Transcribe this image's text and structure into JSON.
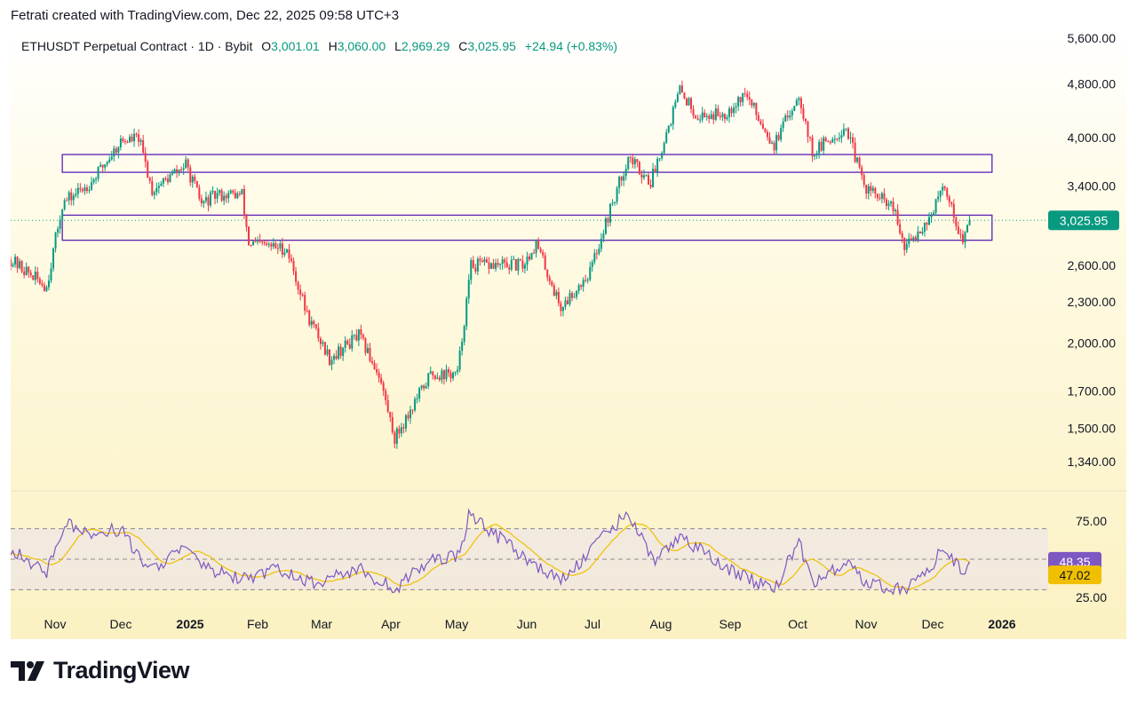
{
  "header": {
    "attribution": "Fetrati created with TradingView.com, Dec 22, 2025 09:58 UTC+3"
  },
  "legend": {
    "symbol": "ETHUSDT Perpetual Contract · 1D · Bybit",
    "o_label": "O",
    "o_value": "3,001.01",
    "h_label": "H",
    "h_value": "3,060.00",
    "l_label": "L",
    "l_value": "2,969.29",
    "c_label": "C",
    "c_value": "3,025.95",
    "change": "+24.94 (+0.83%)"
  },
  "brand": {
    "name": "TradingView"
  },
  "colors": {
    "up": "#089981",
    "down": "#f23645",
    "box": "#5b21b6",
    "rsi": "#7e57c2",
    "rsi_ma": "#f0c000",
    "price_badge": "#089981"
  },
  "chart_data": {
    "type": "candlestick",
    "price_axis": {
      "scale": "log",
      "ticks": [
        5600,
        4800,
        4000,
        3400,
        2600,
        2300,
        2000,
        1700,
        1500,
        1340
      ],
      "tick_labels": [
        "5,600.00",
        "4,800.00",
        "4,000.00",
        "3,400.00",
        "2,600.00",
        "2,300.00",
        "2,000.00",
        "1,700.00",
        "1,500.00",
        "1,340.00"
      ]
    },
    "time_axis": {
      "labels": [
        "Nov",
        "Dec",
        "2025",
        "Feb",
        "Mar",
        "Apr",
        "May",
        "Jun",
        "Jul",
        "Aug",
        "Sep",
        "Oct",
        "Nov",
        "Dec",
        "2026"
      ],
      "bold_labels": [
        "2025",
        "2026"
      ]
    },
    "current_price": {
      "value": 3025.95,
      "label": "3,025.95"
    },
    "zones": [
      {
        "from": "2024-11-12",
        "to": "2025-12-31",
        "top": 3780,
        "bottom": 3560
      },
      {
        "from": "2024-11-12",
        "to": "2025-12-31",
        "top": 3080,
        "bottom": 2830
      }
    ],
    "price_path": [
      [
        "2024-10-20",
        2650
      ],
      [
        "2024-11-05",
        2420
      ],
      [
        "2024-11-12",
        3200
      ],
      [
        "2024-11-25",
        3450
      ],
      [
        "2024-12-08",
        3950
      ],
      [
        "2024-12-16",
        4000
      ],
      [
        "2024-12-22",
        3350
      ],
      [
        "2025-01-06",
        3650
      ],
      [
        "2025-01-13",
        3200
      ],
      [
        "2025-01-20",
        3300
      ],
      [
        "2025-01-31",
        3300
      ],
      [
        "2025-02-03",
        2800
      ],
      [
        "2025-02-20",
        2750
      ],
      [
        "2025-03-01",
        2200
      ],
      [
        "2025-03-11",
        1900
      ],
      [
        "2025-03-24",
        2050
      ],
      [
        "2025-04-02",
        1800
      ],
      [
        "2025-04-09",
        1450
      ],
      [
        "2025-04-25",
        1800
      ],
      [
        "2025-05-07",
        1800
      ],
      [
        "2025-05-13",
        2600
      ],
      [
        "2025-06-05",
        2600
      ],
      [
        "2025-06-11",
        2800
      ],
      [
        "2025-06-22",
        2250
      ],
      [
        "2025-07-05",
        2550
      ],
      [
        "2025-07-12",
        3000
      ],
      [
        "2025-07-22",
        3750
      ],
      [
        "2025-08-01",
        3450
      ],
      [
        "2025-08-14",
        4700
      ],
      [
        "2025-08-22",
        4300
      ],
      [
        "2025-09-03",
        4350
      ],
      [
        "2025-09-12",
        4650
      ],
      [
        "2025-09-25",
        3900
      ],
      [
        "2025-10-06",
        4650
      ],
      [
        "2025-10-12",
        3800
      ],
      [
        "2025-10-27",
        4150
      ],
      [
        "2025-11-04",
        3400
      ],
      [
        "2025-11-17",
        3150
      ],
      [
        "2025-11-22",
        2750
      ],
      [
        "2025-12-03",
        3050
      ],
      [
        "2025-12-10",
        3400
      ],
      [
        "2025-12-18",
        2800
      ],
      [
        "2025-12-21",
        3026
      ]
    ],
    "rsi": {
      "name": "RSI",
      "levels": [
        70,
        50,
        30
      ],
      "tick_labels": [
        "75.00",
        "25.00"
      ],
      "value": 48.35,
      "value_label": "48.35",
      "ma_value": 47.02,
      "ma_label": "47.02",
      "path": [
        [
          "2024-10-20",
          56
        ],
        [
          "2024-11-05",
          42
        ],
        [
          "2024-11-13",
          73
        ],
        [
          "2024-11-26",
          66
        ],
        [
          "2024-12-08",
          70
        ],
        [
          "2024-12-20",
          42
        ],
        [
          "2025-01-06",
          58
        ],
        [
          "2025-01-14",
          44
        ],
        [
          "2025-02-03",
          36
        ],
        [
          "2025-02-15",
          44
        ],
        [
          "2025-03-04",
          34
        ],
        [
          "2025-03-24",
          44
        ],
        [
          "2025-04-09",
          30
        ],
        [
          "2025-04-25",
          50
        ],
        [
          "2025-05-08",
          52
        ],
        [
          "2025-05-12",
          80
        ],
        [
          "2025-06-05",
          52
        ],
        [
          "2025-06-22",
          35
        ],
        [
          "2025-07-12",
          66
        ],
        [
          "2025-07-22",
          81
        ],
        [
          "2025-08-02",
          48
        ],
        [
          "2025-08-14",
          66
        ],
        [
          "2025-09-01",
          46
        ],
        [
          "2025-09-25",
          30
        ],
        [
          "2025-10-06",
          62
        ],
        [
          "2025-10-12",
          33
        ],
        [
          "2025-10-28",
          50
        ],
        [
          "2025-11-04",
          34
        ],
        [
          "2025-11-22",
          30
        ],
        [
          "2025-12-03",
          44
        ],
        [
          "2025-12-10",
          58
        ],
        [
          "2025-12-18",
          40
        ],
        [
          "2025-12-21",
          48.35
        ]
      ]
    }
  }
}
